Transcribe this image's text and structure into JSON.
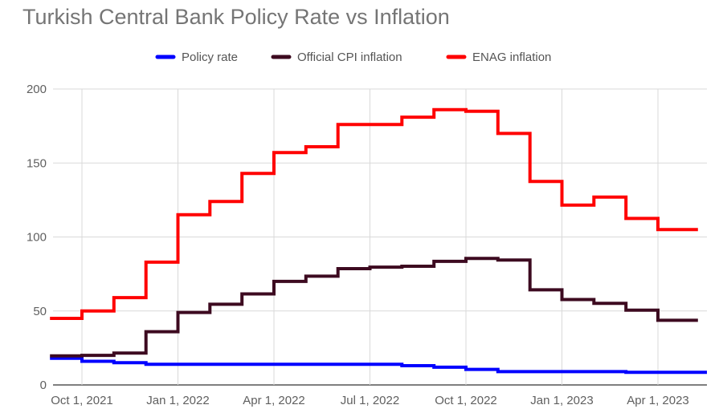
{
  "chart_data": {
    "type": "line",
    "title": "Turkish Central Bank Policy Rate vs Inflation",
    "xlabel": "",
    "ylabel": "",
    "x": [
      "Sep 2021",
      "Oct 2021",
      "Nov 2021",
      "Dec 2021",
      "Jan 2022",
      "Feb 2022",
      "Mar 2022",
      "Apr 2022",
      "May 2022",
      "Jun 2022",
      "Jul 2022",
      "Aug 2022",
      "Sep 2022",
      "Oct 2022",
      "Nov 2022",
      "Dec 2022",
      "Jan 2023",
      "Feb 2023",
      "Mar 2023",
      "Apr 2023",
      "May 2023"
    ],
    "x_ticks": [
      "Oct 1, 2021",
      "Jan 1, 2022",
      "Apr 1, 2022",
      "Jul 1, 2022",
      "Oct 1, 2022",
      "Jan 1, 2023",
      "Apr 1, 2023"
    ],
    "ylim": [
      0,
      200
    ],
    "y_ticks": [
      0,
      50,
      100,
      150,
      200
    ],
    "grid": true,
    "step": true,
    "legend_position": "top",
    "series": [
      {
        "name": "Policy rate",
        "color": "#0000ff",
        "values": [
          18,
          16,
          15,
          14,
          14,
          14,
          14,
          14,
          14,
          14,
          14,
          13,
          12,
          10.5,
          9,
          9,
          9,
          9,
          8.5,
          8.5,
          8.5
        ]
      },
      {
        "name": "Official CPI inflation",
        "color": "#3d0a20",
        "values": [
          19.6,
          20,
          21.5,
          36,
          49,
          54.5,
          61.5,
          70,
          73.5,
          78.6,
          79.6,
          80.2,
          83.5,
          85.5,
          84.4,
          64.3,
          57.7,
          55.2,
          50.5,
          43.7,
          43.7
        ]
      },
      {
        "name": "ENAG inflation",
        "color": "#ff0000",
        "values": [
          45,
          50,
          59,
          83,
          115,
          124,
          143,
          157,
          161,
          176,
          176,
          181,
          186,
          185,
          170,
          137.5,
          121.5,
          127,
          112.5,
          105,
          105
        ]
      }
    ]
  }
}
